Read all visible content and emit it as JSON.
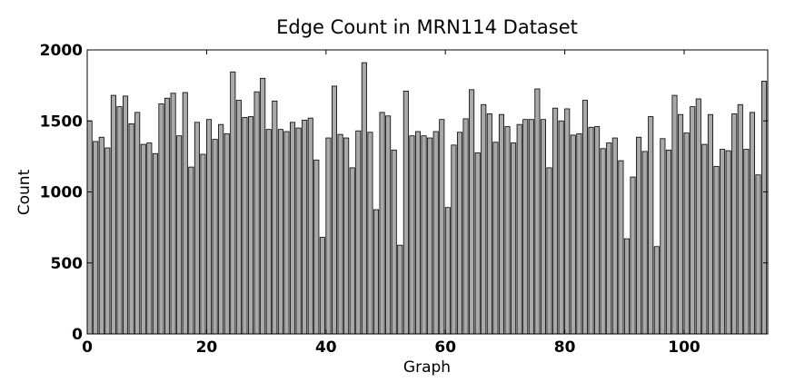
{
  "chart_data": {
    "type": "bar",
    "title": "Edge Count in MRN114 Dataset",
    "xlabel": "Graph",
    "ylabel": "Count",
    "xlim": [
      0,
      114
    ],
    "ylim": [
      0,
      2000
    ],
    "xticks": [
      0,
      20,
      40,
      60,
      80,
      100
    ],
    "yticks": [
      0,
      500,
      1000,
      1500,
      2000
    ],
    "grid": false,
    "bar_color": "#a9a9a9",
    "x": [
      0,
      1,
      2,
      3,
      4,
      5,
      6,
      7,
      8,
      9,
      10,
      11,
      12,
      13,
      14,
      15,
      16,
      17,
      18,
      19,
      20,
      21,
      22,
      23,
      24,
      25,
      26,
      27,
      28,
      29,
      30,
      31,
      32,
      33,
      34,
      35,
      36,
      37,
      38,
      39,
      40,
      41,
      42,
      43,
      44,
      45,
      46,
      47,
      48,
      49,
      50,
      51,
      52,
      53,
      54,
      55,
      56,
      57,
      58,
      59,
      60,
      61,
      62,
      63,
      64,
      65,
      66,
      67,
      68,
      69,
      70,
      71,
      72,
      73,
      74,
      75,
      76,
      77,
      78,
      79,
      80,
      81,
      82,
      83,
      84,
      85,
      86,
      87,
      88,
      89,
      90,
      91,
      92,
      93,
      94,
      95,
      96,
      97,
      98,
      99,
      100,
      101,
      102,
      103,
      104,
      105,
      106,
      107,
      108,
      109,
      110,
      111,
      112,
      113
    ],
    "values": [
      1500,
      1355,
      1385,
      1310,
      1680,
      1600,
      1675,
      1480,
      1560,
      1335,
      1345,
      1270,
      1620,
      1660,
      1695,
      1395,
      1700,
      1175,
      1490,
      1265,
      1510,
      1370,
      1475,
      1410,
      1845,
      1645,
      1525,
      1530,
      1705,
      1800,
      1440,
      1640,
      1440,
      1425,
      1490,
      1450,
      1505,
      1520,
      1225,
      680,
      1380,
      1745,
      1405,
      1380,
      1170,
      1430,
      1910,
      1420,
      875,
      1560,
      1535,
      1295,
      625,
      1710,
      1395,
      1425,
      1395,
      1380,
      1425,
      1510,
      890,
      1330,
      1420,
      1515,
      1720,
      1275,
      1615,
      1550,
      1350,
      1545,
      1460,
      1345,
      1475,
      1510,
      1510,
      1725,
      1510,
      1170,
      1590,
      1500,
      1585,
      1400,
      1410,
      1645,
      1455,
      1460,
      1305,
      1345,
      1380,
      1220,
      670,
      1105,
      1385,
      1285,
      1530,
      615,
      1375,
      1295,
      1680,
      1545,
      1415,
      1600,
      1655,
      1335,
      1545,
      1180,
      1300,
      1290,
      1550,
      1615,
      1300,
      1560,
      1120,
      1780
    ]
  }
}
